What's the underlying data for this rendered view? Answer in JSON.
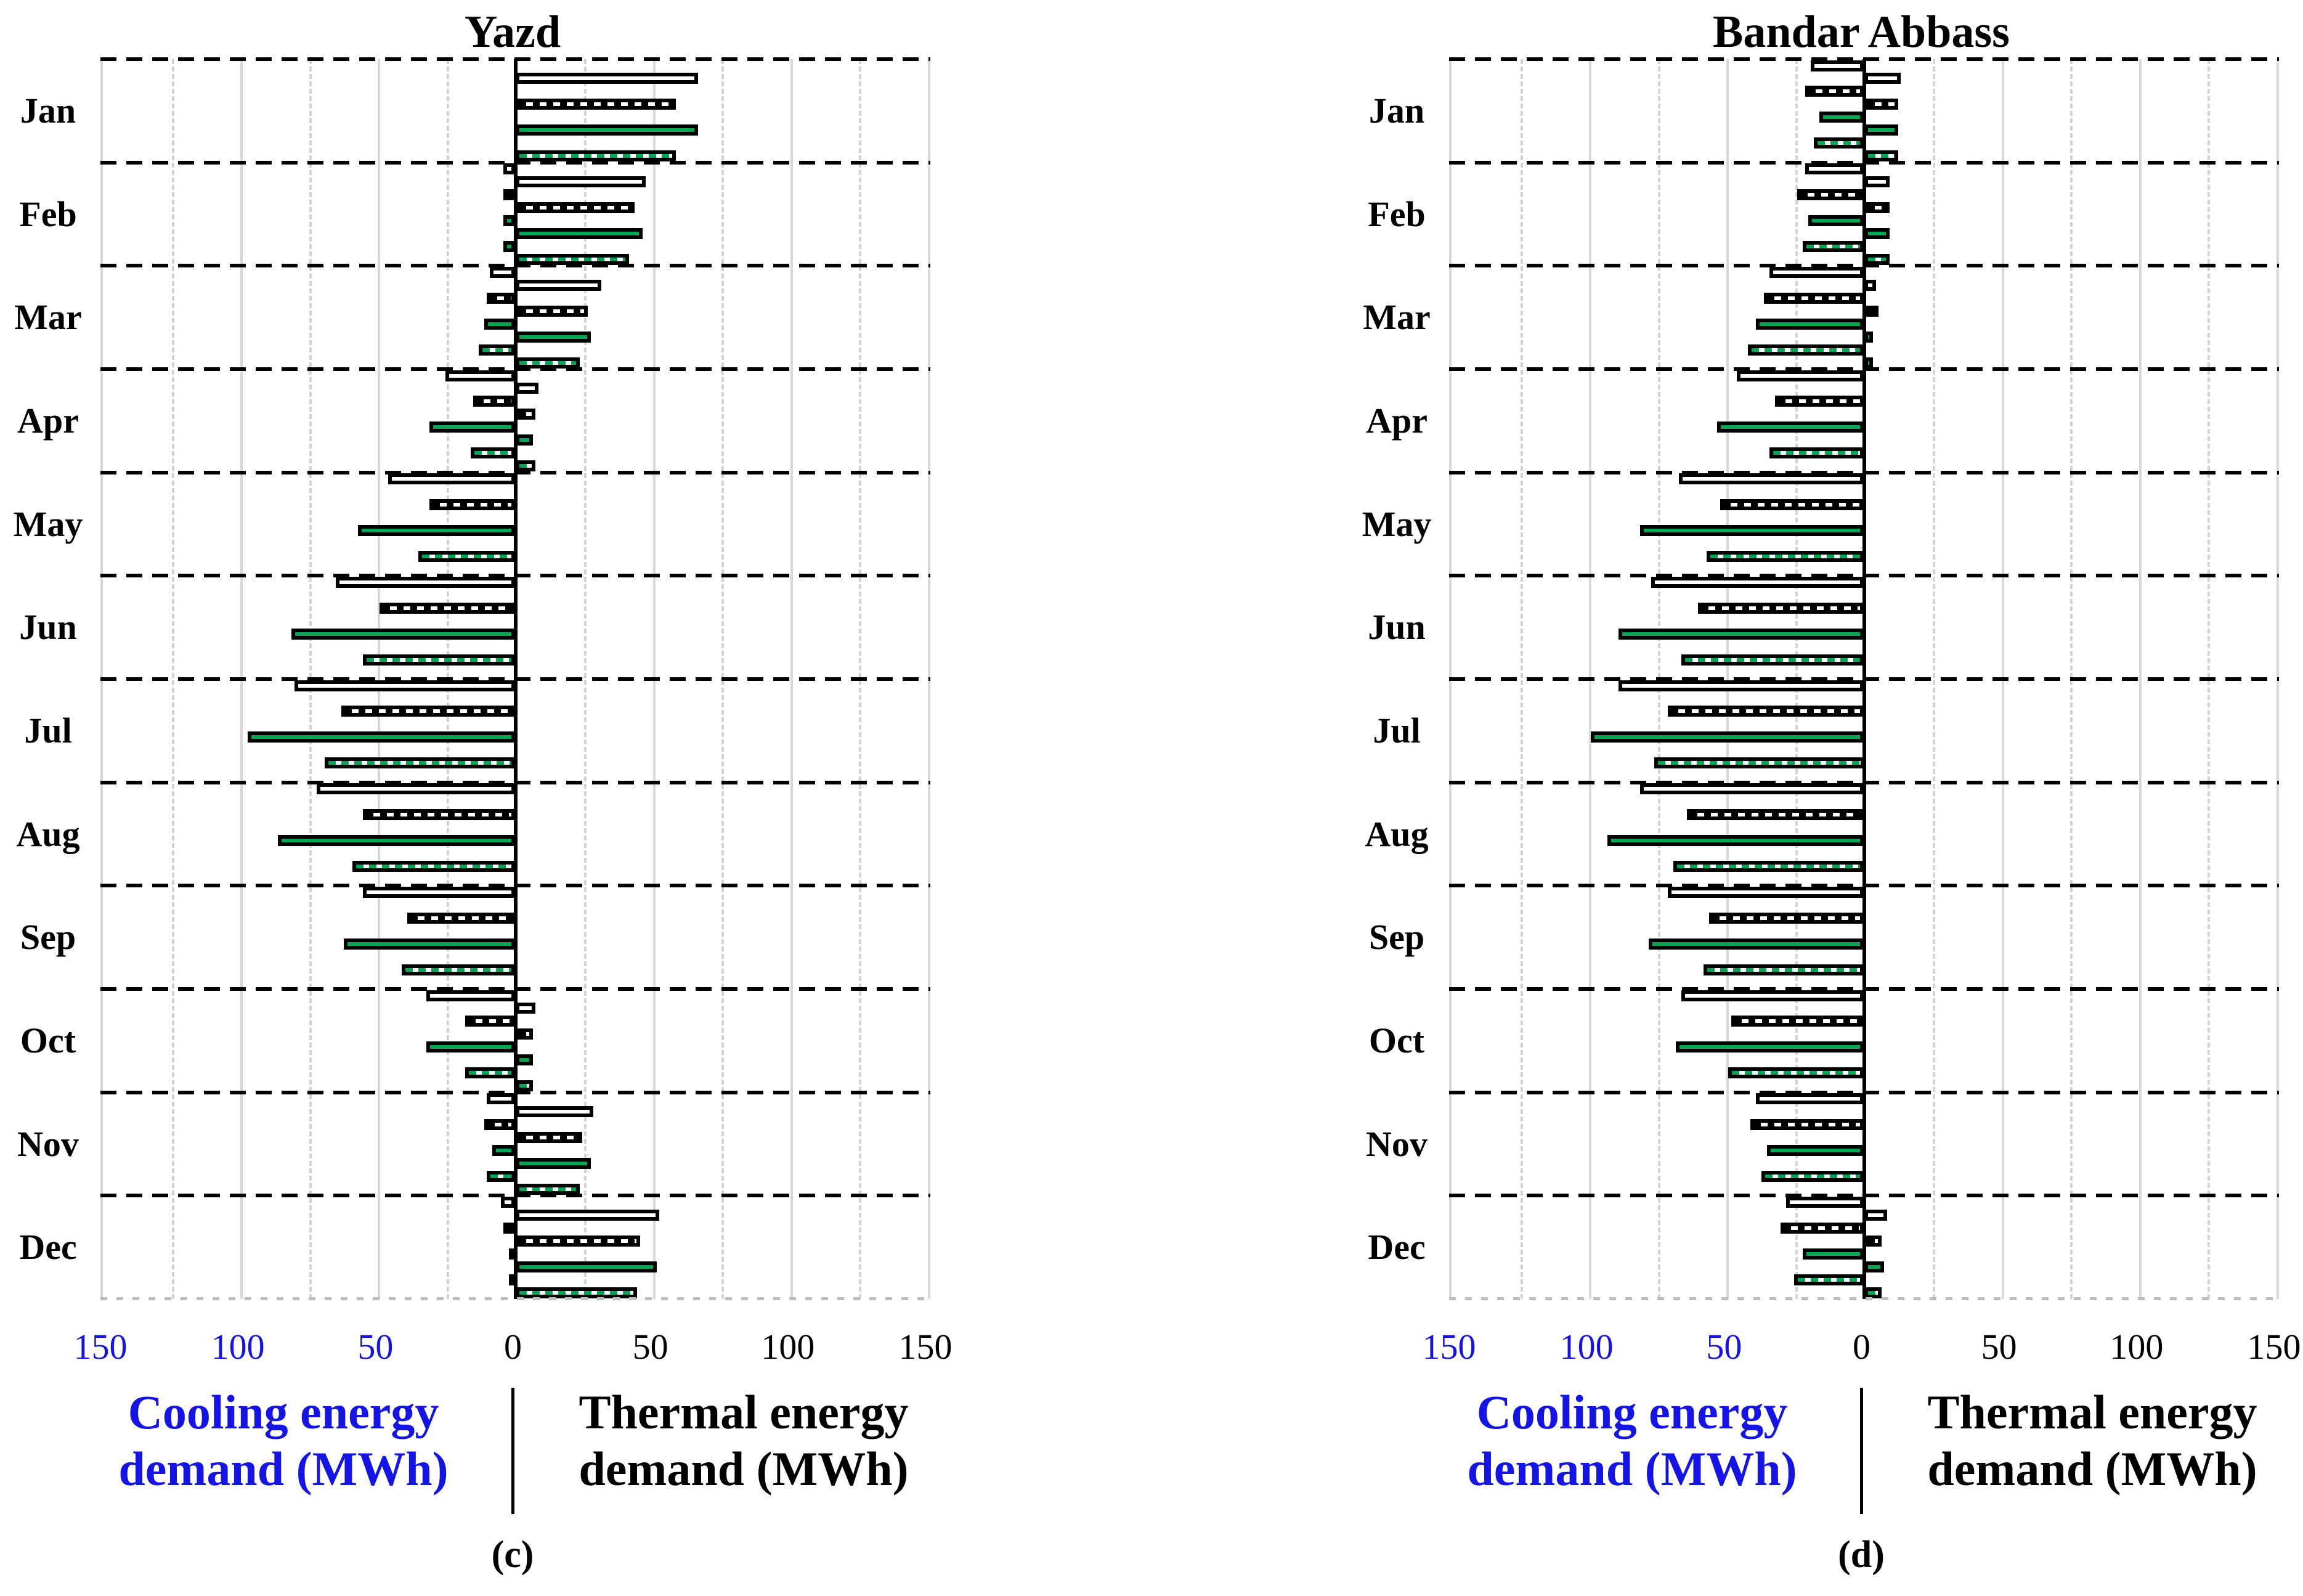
{
  "figure": {
    "colors": {
      "green": "#00A651",
      "blue": "#1414E6",
      "grid": "#d9d9d9"
    },
    "axis": {
      "tick_labels": [
        "150",
        "100",
        "50",
        "0",
        "50",
        "100",
        "150"
      ],
      "tick_values": [
        -150,
        -100,
        -50,
        0,
        50,
        100,
        150
      ],
      "minor_step": 25
    }
  },
  "chart_data": [
    {
      "type": "bar",
      "orientation": "diverging-horizontal",
      "title": "Yazd",
      "panel_label": "(c)",
      "categories": [
        "Jan",
        "Feb",
        "Mar",
        "Apr",
        "May",
        "Jun",
        "Jul",
        "Aug",
        "Sep",
        "Oct",
        "Nov",
        "Dec"
      ],
      "xlim": [
        -150,
        150
      ],
      "xlabel_left_lines": [
        "Cooling energy",
        "demand (MWh)"
      ],
      "xlabel_right_lines": [
        "Thermal energy",
        "demand (MWh)"
      ],
      "ticks": [
        "150",
        "100",
        "50",
        "0",
        "50",
        "100",
        "150"
      ],
      "series": [
        {
          "name": "white",
          "pattern": "white-solid",
          "cooling": [
            0,
            3,
            8,
            24,
            45,
            64,
            79,
            71,
            54,
            31,
            9,
            4
          ],
          "thermal": [
            65,
            46,
            30,
            7,
            0,
            0,
            0,
            0,
            0,
            6,
            27,
            51
          ]
        },
        {
          "name": "black-hatched",
          "pattern": "vertical-black-hatch",
          "cooling": [
            0,
            3,
            9,
            14,
            30,
            48,
            62,
            54,
            38,
            17,
            10,
            3
          ],
          "thermal": [
            57,
            42,
            25,
            6,
            0,
            0,
            0,
            0,
            0,
            5,
            23,
            44
          ]
        },
        {
          "name": "green",
          "pattern": "green-solid",
          "cooling": [
            0,
            3,
            10,
            30,
            56,
            80,
            96,
            85,
            61,
            31,
            7,
            1
          ],
          "thermal": [
            65,
            45,
            26,
            5,
            0,
            0,
            0,
            0,
            0,
            5,
            26,
            50
          ]
        },
        {
          "name": "green-hatched",
          "pattern": "vertical-green-hatch",
          "cooling": [
            0,
            3,
            12,
            15,
            34,
            54,
            68,
            58,
            40,
            17,
            9,
            1
          ],
          "thermal": [
            57,
            40,
            22,
            6,
            0,
            0,
            0,
            0,
            0,
            5,
            22,
            43
          ]
        }
      ]
    },
    {
      "type": "bar",
      "orientation": "diverging-horizontal",
      "title": "Bandar Abbass",
      "panel_label": "(d)",
      "categories": [
        "Jan",
        "Feb",
        "Mar",
        "Apr",
        "May",
        "Jun",
        "Jul",
        "Aug",
        "Sep",
        "Oct",
        "Nov",
        "Dec"
      ],
      "xlim": [
        -150,
        150
      ],
      "xlabel_left_lines": [
        "Cooling energy",
        "demand (MWh)"
      ],
      "xlabel_right_lines": [
        "Thermal energy",
        "demand (MWh)"
      ],
      "ticks": [
        "150",
        "100",
        "50",
        "0",
        "50",
        "100",
        "150"
      ],
      "series": [
        {
          "name": "white",
          "pattern": "white-solid",
          "cooling": [
            18,
            20,
            33,
            45,
            66,
            76,
            88,
            80,
            70,
            65,
            38,
            27
          ],
          "thermal": [
            12,
            8,
            3,
            0,
            0,
            0,
            0,
            0,
            0,
            0,
            0,
            7
          ]
        },
        {
          "name": "black-hatched",
          "pattern": "vertical-black-hatch",
          "cooling": [
            20,
            23,
            35,
            31,
            51,
            59,
            70,
            63,
            55,
            47,
            40,
            29
          ],
          "thermal": [
            11,
            8,
            4,
            0,
            0,
            0,
            0,
            0,
            0,
            0,
            0,
            5
          ]
        },
        {
          "name": "green",
          "pattern": "green-solid",
          "cooling": [
            15,
            19,
            38,
            52,
            80,
            88,
            98,
            92,
            77,
            67,
            34,
            21
          ],
          "thermal": [
            11,
            8,
            2,
            0,
            0,
            0,
            0,
            0,
            0,
            0,
            0,
            6
          ]
        },
        {
          "name": "green-hatched",
          "pattern": "vertical-green-hatch",
          "cooling": [
            17,
            21,
            41,
            33,
            56,
            65,
            75,
            68,
            57,
            48,
            36,
            24
          ],
          "thermal": [
            11,
            8,
            2,
            0,
            0,
            0,
            0,
            0,
            0,
            0,
            0,
            5
          ]
        }
      ]
    }
  ]
}
